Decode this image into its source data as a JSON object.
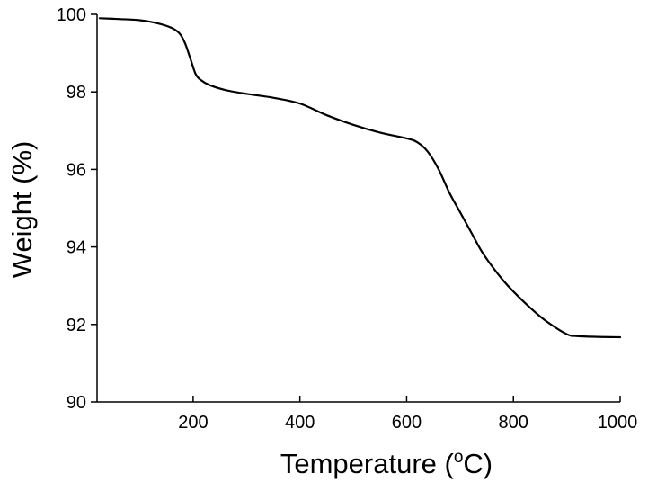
{
  "chart_data": {
    "type": "line",
    "title": "",
    "xlabel": "Temperature (",
    "xlabel_superscript": "o",
    "xlabel_suffix": "C)",
    "ylabel": "Weight (%)",
    "xlim": [
      20,
      1000
    ],
    "ylim": [
      90,
      100
    ],
    "xticks": [
      200,
      400,
      600,
      800,
      1000
    ],
    "xtick_labels": [
      "200",
      "400",
      "600",
      "800",
      "1000"
    ],
    "yticks": [
      90,
      92,
      94,
      96,
      98,
      100
    ],
    "ytick_labels": [
      "90",
      "92",
      "94",
      "96",
      "98",
      "100"
    ],
    "grid": false,
    "legend": "none",
    "line_color": "#000000",
    "series": [
      {
        "x": [
          25,
          60,
          100,
          130,
          160,
          175,
          185,
          195,
          205,
          215,
          230,
          260,
          300,
          350,
          400,
          450,
          500,
          550,
          600,
          620,
          640,
          660,
          680,
          700,
          720,
          740,
          760,
          780,
          800,
          830,
          860,
          900,
          920,
          960,
          1000
        ],
        "y": [
          99.9,
          99.88,
          99.85,
          99.78,
          99.65,
          99.5,
          99.25,
          98.85,
          98.45,
          98.3,
          98.18,
          98.05,
          97.95,
          97.85,
          97.7,
          97.4,
          97.15,
          96.95,
          96.8,
          96.7,
          96.45,
          96.0,
          95.4,
          94.9,
          94.4,
          93.9,
          93.5,
          93.15,
          92.85,
          92.45,
          92.1,
          91.75,
          91.7,
          91.68,
          91.67
        ]
      }
    ]
  }
}
